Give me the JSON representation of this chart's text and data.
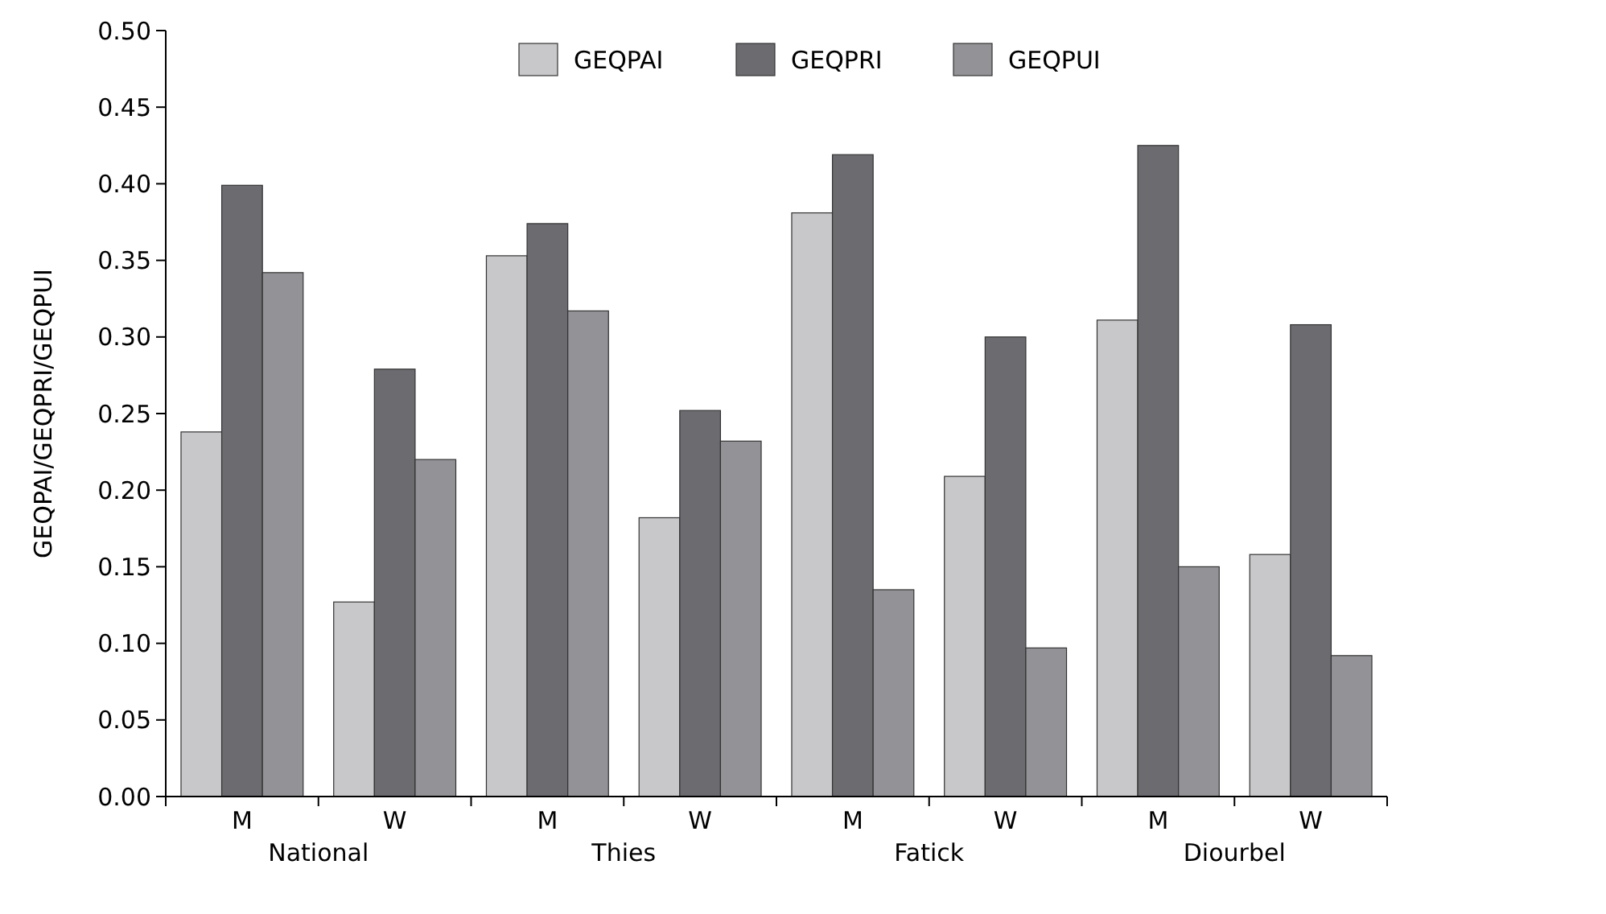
{
  "chart_data": {
    "type": "bar",
    "ylabel": "GEQPAI/GEQPRI/GEQPUI",
    "categories": [
      "M",
      "W",
      "M",
      "W",
      "M",
      "W",
      "M",
      "W"
    ],
    "annotations": [
      "National",
      "Thies",
      "Fatick",
      "Diourbel"
    ],
    "series": [
      {
        "name": "GEQPAI",
        "color": "#c8c8ca",
        "values": [
          0.238,
          0.127,
          0.353,
          0.182,
          0.381,
          0.209,
          0.311,
          0.158
        ]
      },
      {
        "name": "GEQPRI",
        "color": "#6b6b70",
        "values": [
          0.399,
          0.279,
          0.374,
          0.252,
          0.419,
          0.3,
          0.425,
          0.308
        ]
      },
      {
        "name": "GEQPUI",
        "color": "#939397",
        "values": [
          0.342,
          0.22,
          0.317,
          0.232,
          0.135,
          0.097,
          0.15,
          0.092
        ]
      }
    ],
    "ylim": [
      0,
      0.5
    ],
    "yticks": [
      {
        "value": 0,
        "label": "0.00"
      },
      {
        "value": 0.05,
        "label": "0.05"
      },
      {
        "value": 0.1,
        "label": "0.10"
      },
      {
        "value": 0.15,
        "label": "0.15"
      },
      {
        "value": 0.2,
        "label": "0.20"
      },
      {
        "value": 0.25,
        "label": "0.25"
      },
      {
        "value": 0.3,
        "label": "0.30"
      },
      {
        "value": 0.35,
        "label": "0.35"
      },
      {
        "value": 0.4,
        "label": "0.40"
      },
      {
        "value": 0.45,
        "label": "0.45"
      },
      {
        "value": 0.5,
        "label": "0.50"
      }
    ],
    "legend": "top",
    "grid": false
  }
}
